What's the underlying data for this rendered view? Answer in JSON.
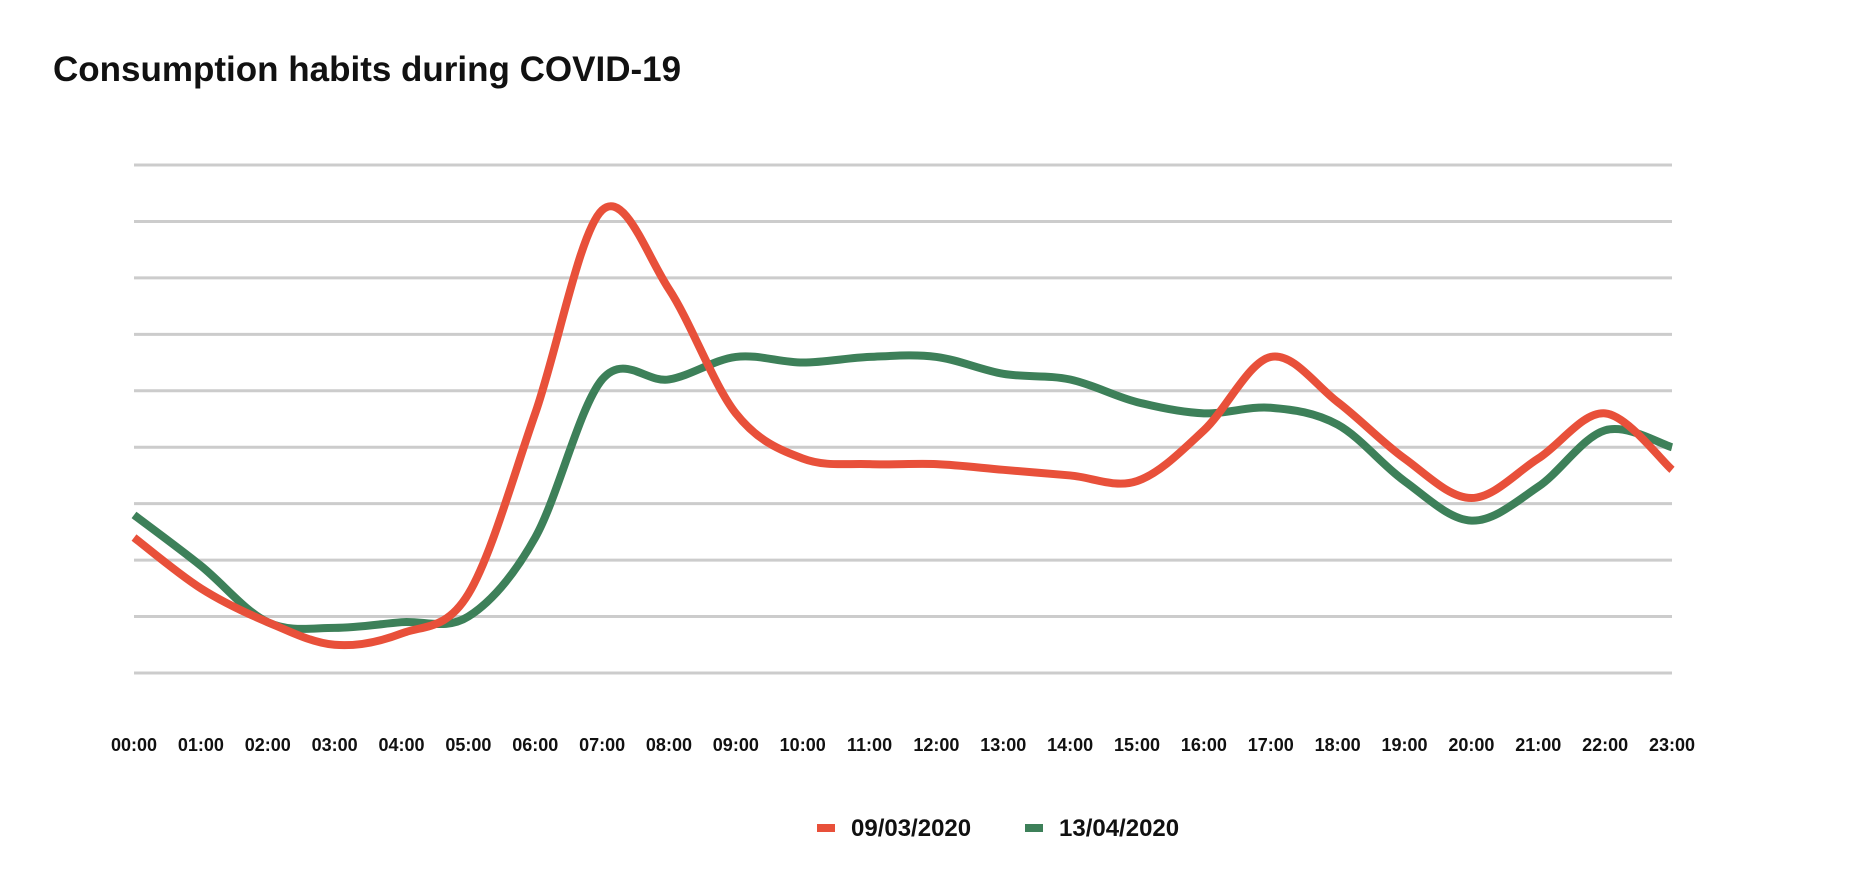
{
  "chart_data": {
    "type": "line",
    "title": "Consumption habits during COVID-19",
    "xlabel": "",
    "ylabel": "",
    "ylim": [
      0,
      9
    ],
    "grid": true,
    "legend_position": "bottom-center",
    "x": [
      "00:00",
      "01:00",
      "02:00",
      "03:00",
      "04:00",
      "05:00",
      "06:00",
      "07:00",
      "08:00",
      "09:00",
      "10:00",
      "11:00",
      "12:00",
      "13:00",
      "14:00",
      "15:00",
      "16:00",
      "17:00",
      "18:00",
      "19:00",
      "20:00",
      "21:00",
      "22:00",
      "23:00"
    ],
    "series": [
      {
        "name": "09/03/2020",
        "color": "#e8503a",
        "values": [
          2.4,
          1.5,
          0.9,
          0.5,
          0.7,
          1.4,
          4.6,
          8.2,
          6.8,
          4.6,
          3.8,
          3.7,
          3.7,
          3.6,
          3.5,
          3.4,
          4.3,
          5.6,
          4.8,
          3.8,
          3.1,
          3.8,
          4.6,
          3.6
        ]
      },
      {
        "name": "13/04/2020",
        "color": "#3d8059",
        "values": [
          2.8,
          1.9,
          0.9,
          0.8,
          0.9,
          1.0,
          2.4,
          5.2,
          5.2,
          5.6,
          5.5,
          5.6,
          5.6,
          5.3,
          5.2,
          4.8,
          4.6,
          4.7,
          4.4,
          3.4,
          2.7,
          3.3,
          4.3,
          4.0
        ]
      }
    ]
  }
}
